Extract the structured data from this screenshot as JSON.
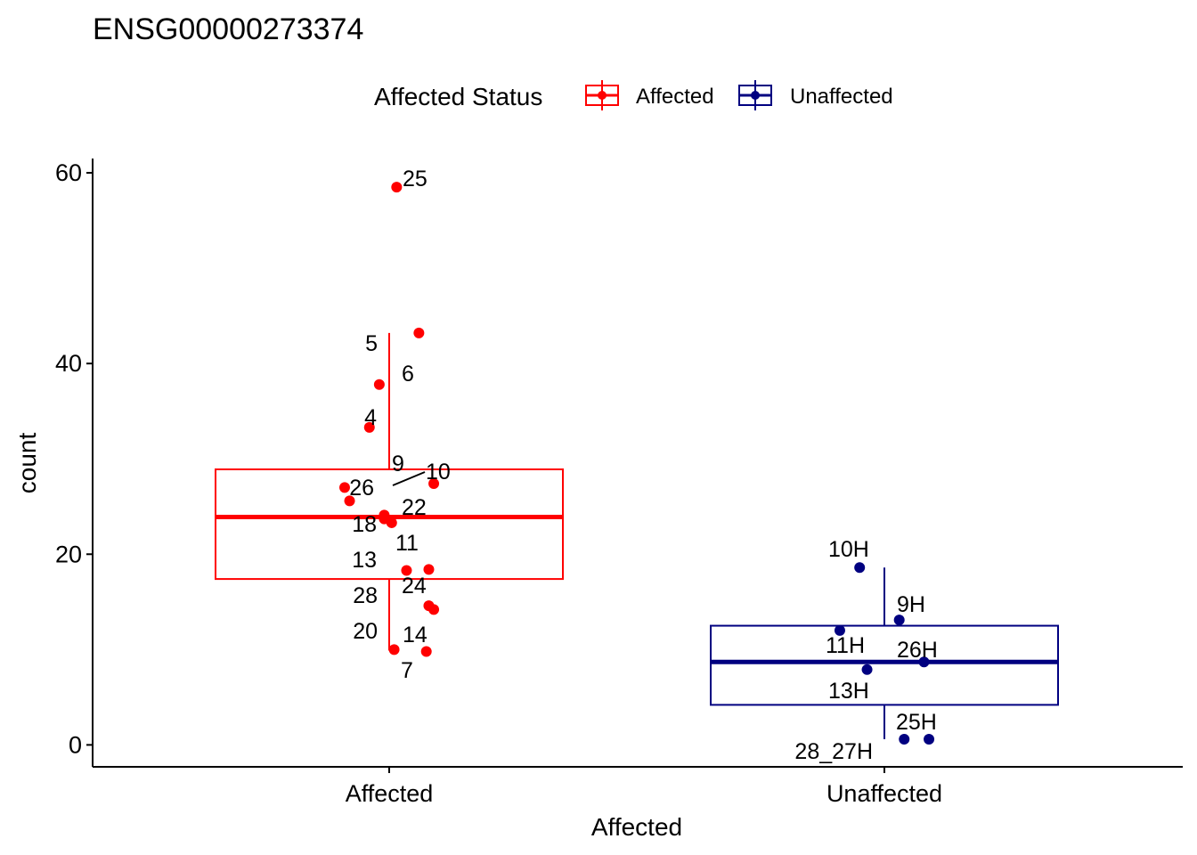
{
  "chart_data": {
    "type": "boxplot",
    "title": "ENSG00000273374",
    "xlabel": "Affected",
    "ylabel": "count",
    "ylim": [
      -2.3,
      61.5
    ],
    "yticks": [
      0,
      20,
      40,
      60
    ],
    "categories": [
      "Affected",
      "Unaffected"
    ],
    "legend": {
      "title": "Affected Status",
      "position": "top",
      "entries": [
        {
          "name": "Affected",
          "color": "#FF0000"
        },
        {
          "name": "Unaffected",
          "color": "#000080"
        }
      ]
    },
    "series": [
      {
        "name": "Affected",
        "color": "#FF0000",
        "box": {
          "min": 9.9,
          "q1": 17.4,
          "median": 23.9,
          "q3": 28.9,
          "max": 43.2
        },
        "points": [
          {
            "label": "25",
            "x_jitter": 0.03,
            "y": 58.5
          },
          {
            "label": "5",
            "x_jitter": 0.12,
            "y": 43.2
          },
          {
            "label": "6",
            "x_jitter": -0.04,
            "y": 37.8
          },
          {
            "label": "4",
            "x_jitter": -0.08,
            "y": 33.3
          },
          {
            "label": "9",
            "x_jitter": 0.18,
            "y": 27.4
          },
          {
            "label": "10",
            "x_jitter": -0.18,
            "y": 27.0
          },
          {
            "label": "26",
            "x_jitter": -0.16,
            "y": 25.6
          },
          {
            "label": "22",
            "x_jitter": -0.02,
            "y": 24.1
          },
          {
            "label": "18",
            "x_jitter": -0.02,
            "y": 23.7
          },
          {
            "label": "11",
            "x_jitter": 0.01,
            "y": 23.3
          },
          {
            "label": "13",
            "x_jitter": 0.16,
            "y": 18.4
          },
          {
            "label": "24",
            "x_jitter": 0.07,
            "y": 18.3
          },
          {
            "label": "28",
            "x_jitter": 0.16,
            "y": 14.6
          },
          {
            "label": "20",
            "x_jitter": 0.18,
            "y": 14.2
          },
          {
            "label": "14",
            "x_jitter": 0.02,
            "y": 10.0
          },
          {
            "label": "7",
            "x_jitter": 0.15,
            "y": 9.8
          }
        ]
      },
      {
        "name": "Unaffected",
        "color": "#000080",
        "box": {
          "min": 0.6,
          "q1": 4.2,
          "median": 8.7,
          "q3": 12.5,
          "max": 18.6
        },
        "points": [
          {
            "label": "10H",
            "x_jitter": -0.1,
            "y": 18.6
          },
          {
            "label": "9H",
            "x_jitter": 0.06,
            "y": 13.1
          },
          {
            "label": "11H",
            "x_jitter": -0.18,
            "y": 12.0
          },
          {
            "label": "26H",
            "x_jitter": 0.16,
            "y": 8.7
          },
          {
            "label": "13H",
            "x_jitter": -0.07,
            "y": 7.9
          },
          {
            "label": "25H",
            "x_jitter": 0.08,
            "y": 0.6
          },
          {
            "label": "28_27H",
            "x_jitter": 0.18,
            "y": 0.6
          }
        ]
      }
    ]
  }
}
